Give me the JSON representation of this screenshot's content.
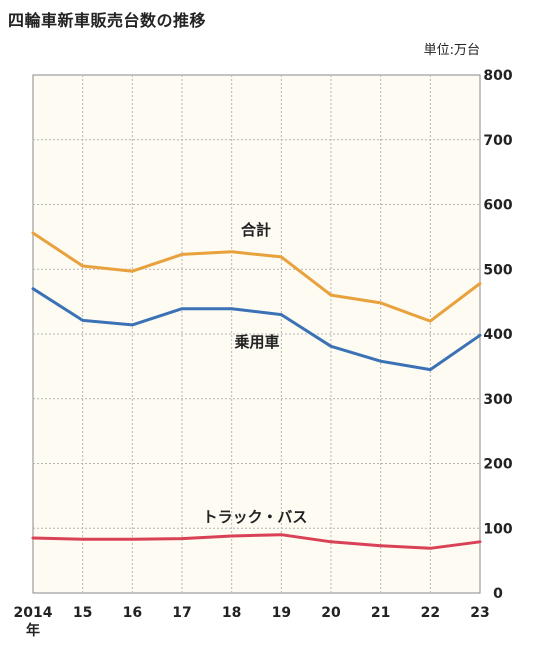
{
  "chart_data": {
    "type": "line",
    "title": "四輪車新車販売台数の推移",
    "unit_label": "単位:万台",
    "x": [
      "2014",
      "15",
      "16",
      "17",
      "18",
      "19",
      "20",
      "21",
      "22",
      "23"
    ],
    "x_suffix_label": "年",
    "ylim": [
      0,
      800
    ],
    "yticks": [
      0,
      100,
      200,
      300,
      400,
      500,
      600,
      700,
      800
    ],
    "grid": true,
    "legend": "inline",
    "series": [
      {
        "name": "合計",
        "color": "#E8A13C",
        "values": [
          556,
          505,
          497,
          523,
          527,
          519,
          460,
          448,
          420,
          478
        ]
      },
      {
        "name": "乗用車",
        "color": "#3A72B5",
        "values": [
          470,
          421,
          414,
          439,
          439,
          430,
          381,
          358,
          345,
          398
        ]
      },
      {
        "name": "トラック・バス",
        "color": "#D94256",
        "values": [
          85,
          83,
          83,
          84,
          88,
          90,
          79,
          73,
          69,
          79
        ]
      }
    ]
  }
}
